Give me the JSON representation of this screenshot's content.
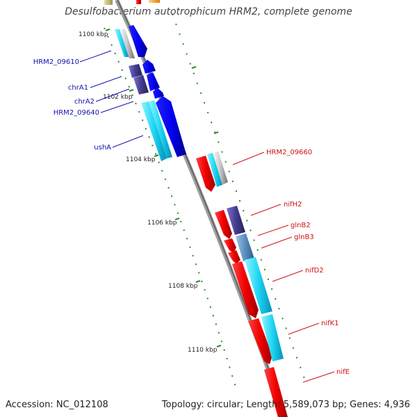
{
  "title": "Desulfobacterium autotrophicum HRM2, complete genome",
  "footer": {
    "accession": "Accession: NC_012108",
    "stats": "Topology: circular; Length: 5,589,073 bp; Genes: 4,936"
  },
  "colors": {
    "backbone": "#8c8c8c",
    "tick": "#2a8a2a",
    "reverse_label": "#1010b0",
    "forward_label": "#d01010"
  },
  "ticks": [
    "1100 kbp",
    "1102 kbp",
    "1104 kbp",
    "1106 kbp",
    "1108 kbp",
    "1110 kbp"
  ],
  "genes_reverse_strand": [
    "HRM2_09610",
    "chrA1",
    "chrA2",
    "HRM2_09640",
    "ushA"
  ],
  "genes_forward_strand": [
    "HRM2_09660",
    "nifH2",
    "glnB2",
    "glnB3",
    "nifD2",
    "nifK1",
    "nifE"
  ]
}
